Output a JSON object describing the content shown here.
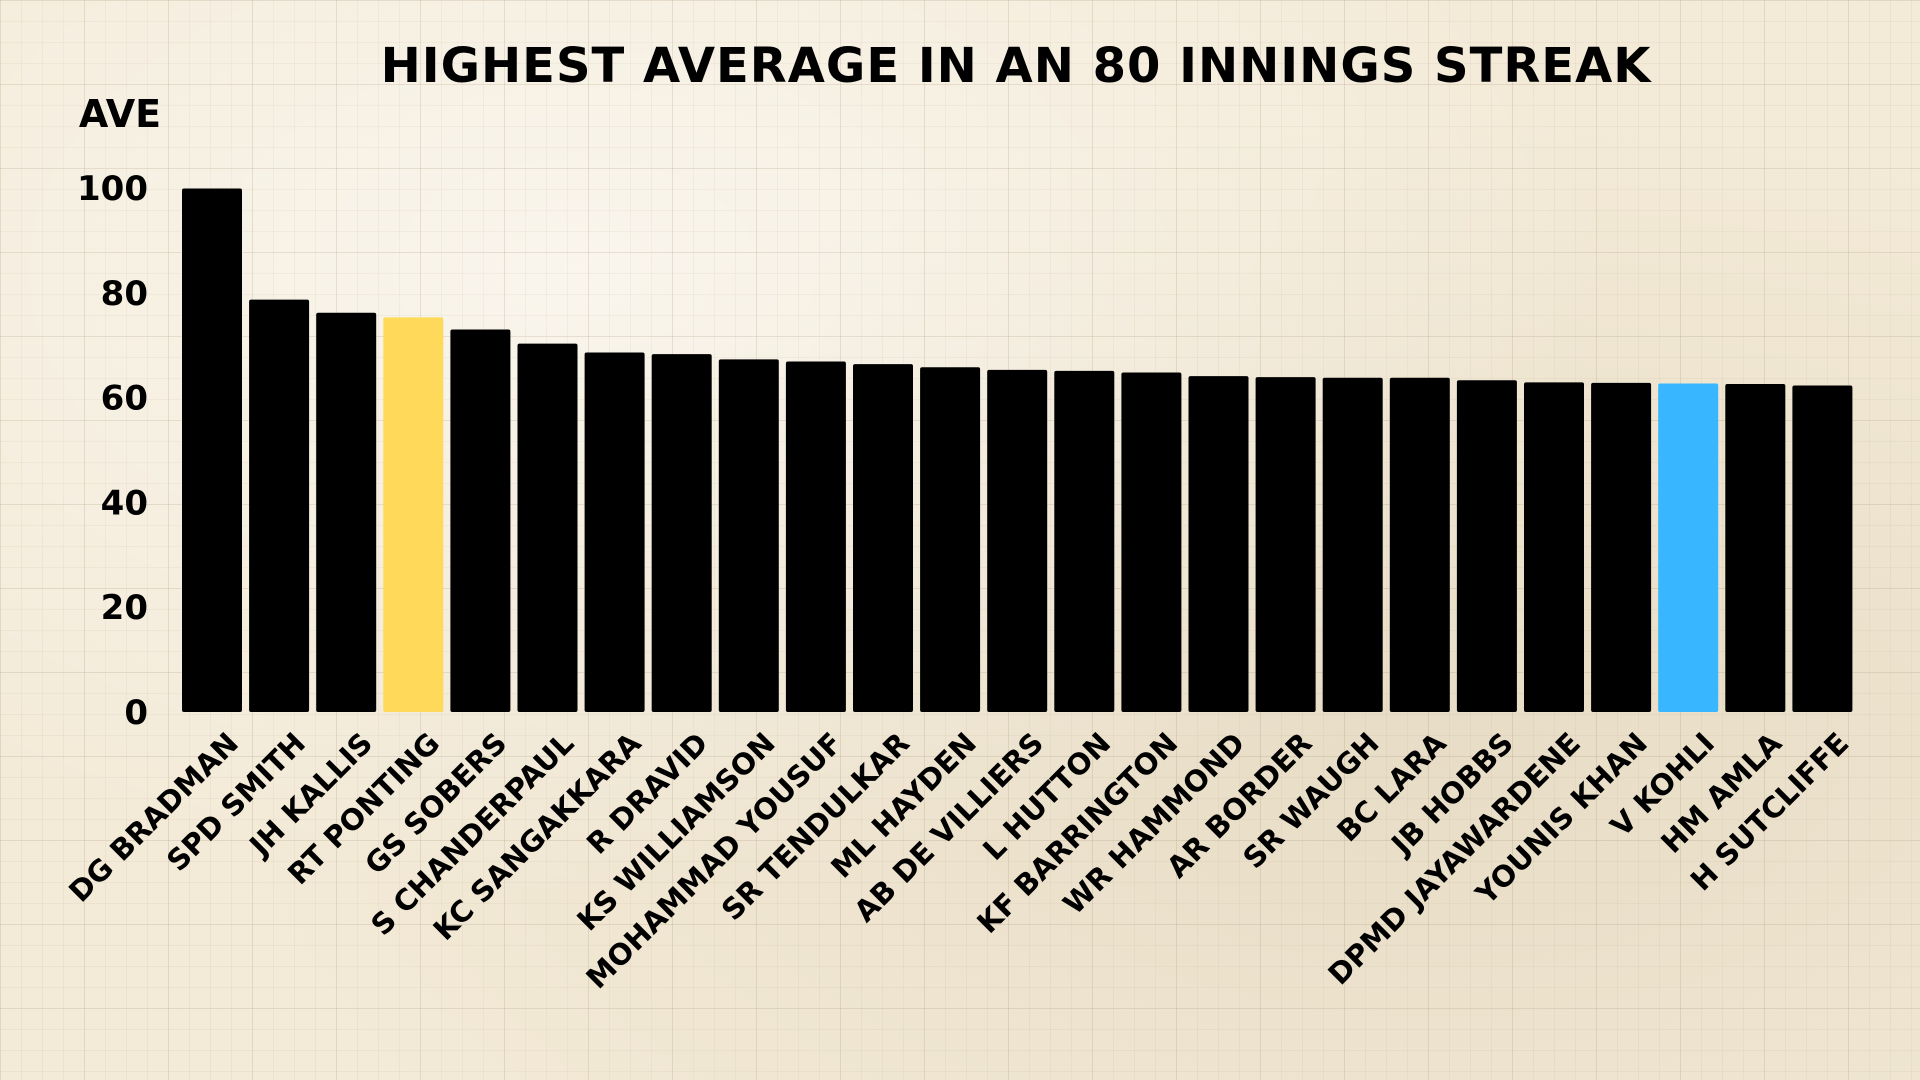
{
  "chart_data": {
    "type": "bar",
    "title": "HIGHEST AVERAGE IN AN 80 INNINGS STREAK",
    "ylabel": "AVE",
    "xlabel": "",
    "ylim": [
      0,
      100
    ],
    "yticks": [
      0,
      20,
      40,
      60,
      80,
      100
    ],
    "grid": false,
    "categories": [
      "DG BRADMAN",
      "SPD SMITH",
      "JH KALLIS",
      "RT PONTING",
      "GS SOBERS",
      "S CHANDERPAUL",
      "KC SANGAKKARA",
      "R DRAVID",
      "KS WILLIAMSON",
      "MOHAMMAD YOUSUF",
      "SR TENDULKAR",
      "ML HAYDEN",
      "AB DE VILLIERS",
      "L HUTTON",
      "KF BARRINGTON",
      "WR HAMMOND",
      "AR BORDER",
      "SR WAUGH",
      "BC LARA",
      "JB HOBBS",
      "DPMD JAYAWARDENE",
      "YOUNIS KHAN",
      "V KOHLI",
      "HM AMLA",
      "H SUTCLIFFE"
    ],
    "values": [
      99.9,
      78.7,
      76.2,
      75.3,
      73.0,
      70.3,
      68.6,
      68.3,
      67.3,
      66.9,
      66.4,
      65.8,
      65.3,
      65.1,
      64.8,
      64.1,
      63.9,
      63.8,
      63.8,
      63.3,
      62.9,
      62.8,
      62.7,
      62.6,
      62.3
    ],
    "colors": [
      "#000000",
      "#000000",
      "#000000",
      "#ffd95a",
      "#000000",
      "#000000",
      "#000000",
      "#000000",
      "#000000",
      "#000000",
      "#000000",
      "#000000",
      "#000000",
      "#000000",
      "#000000",
      "#000000",
      "#000000",
      "#000000",
      "#000000",
      "#000000",
      "#000000",
      "#000000",
      "#38b6ff",
      "#000000",
      "#000000"
    ]
  }
}
